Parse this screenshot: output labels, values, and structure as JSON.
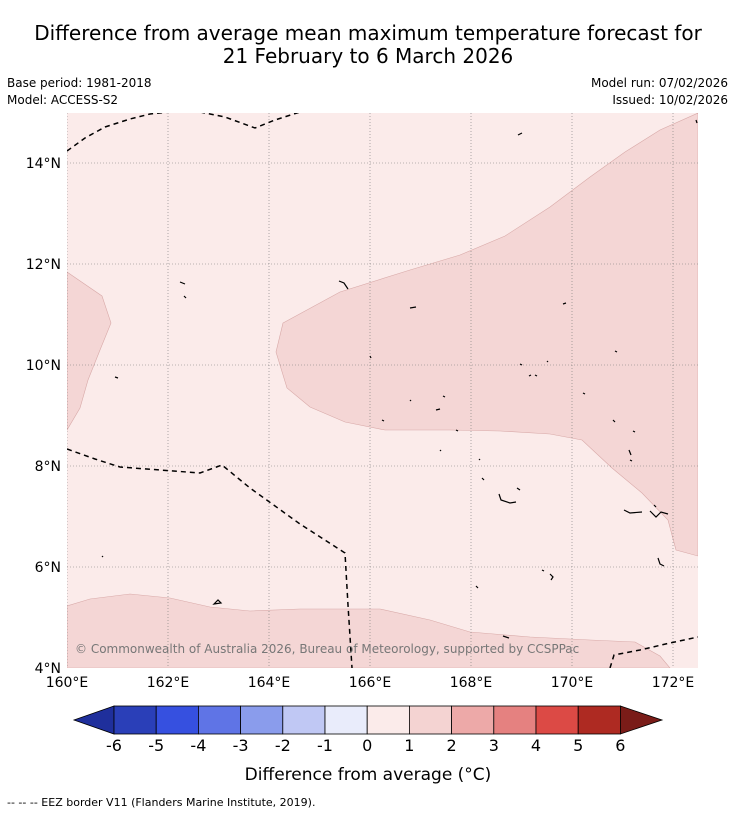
{
  "title_line1": "Difference from average mean maximum temperature forecast for",
  "title_line2": "21 February to 6 March 2026",
  "base_period": "Base period: 1981-2018",
  "model": "Model: ACCESS-S2",
  "model_run": "Model run: 07/02/2026",
  "issued": "Issued: 10/02/2026",
  "lat_labels": [
    "14°N",
    "12°N",
    "10°N",
    "8°N",
    "6°N",
    "4°N"
  ],
  "lon_labels": [
    "160°E",
    "162°E",
    "164°E",
    "166°E",
    "168°E",
    "170°E",
    "172°E"
  ],
  "copyright": "© Commonwealth of Australia 2026, Bureau of Meteorology, supported by CCSPPac",
  "colorbar": {
    "ticks": [
      "-6",
      "-5",
      "-4",
      "-3",
      "-2",
      "-1",
      "0",
      "1",
      "2",
      "3",
      "4",
      "5",
      "6"
    ],
    "colors": [
      "#1f2f9c",
      "#2a3fb8",
      "#3650e0",
      "#5f74e6",
      "#8a9cec",
      "#c0c8f4",
      "#e9ecfb",
      "#fbebea",
      "#f4d3d2",
      "#eda9a8",
      "#e58180",
      "#dc4a45",
      "#ae2a22",
      "#7a1c18"
    ],
    "label": "Difference from average (°C)"
  },
  "map": {
    "base_fill": "#fbebea",
    "band_fill": "#f4d6d5"
  },
  "footnote": "--  --  -- EEZ border V11 (Flanders Marine Institute, 2019)."
}
